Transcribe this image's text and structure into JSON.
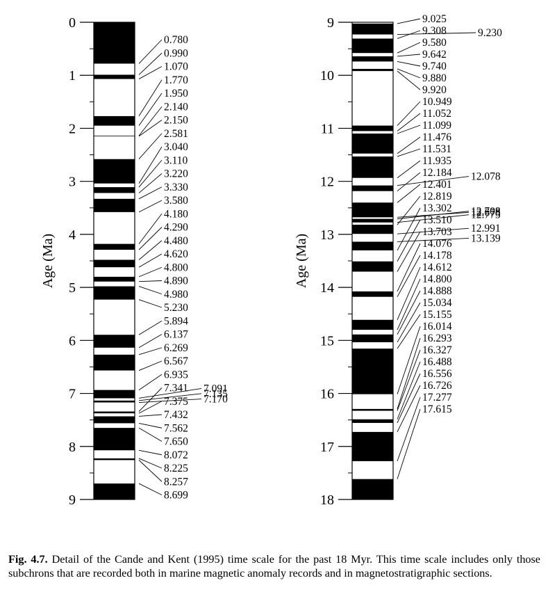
{
  "chart_data": [
    {
      "type": "magnetic-polarity-column",
      "ylabel": "Age (Ma)",
      "ylim": [
        0,
        9
      ],
      "y_ticks": [
        "0",
        "1",
        "2",
        "3",
        "4",
        "5",
        "6",
        "7",
        "8",
        "9"
      ],
      "reversal_ages": [
        "0.780",
        "0.990",
        "1.070",
        "1.770",
        "1.950",
        "2.140",
        "2.150",
        "2.581",
        "3.040",
        "3.110",
        "3.220",
        "3.330",
        "3.580",
        "4.180",
        "4.290",
        "4.480",
        "4.620",
        "4.800",
        "4.890",
        "4.980",
        "5.230",
        "5.894",
        "6.137",
        "6.269",
        "6.567",
        "6.935",
        "7.091",
        "7.135",
        "7.170",
        "7.341",
        "7.375",
        "7.432",
        "7.562",
        "7.650",
        "8.072",
        "8.225",
        "8.257",
        "8.699"
      ],
      "first_interval_normal": true,
      "colors": {
        "normal": "#000000",
        "reversed": "#ffffff"
      }
    },
    {
      "type": "magnetic-polarity-column",
      "ylabel": "Age (Ma)",
      "ylim": [
        9,
        18
      ],
      "y_ticks": [
        "9",
        "10",
        "11",
        "12",
        "13",
        "14",
        "15",
        "16",
        "17",
        "18"
      ],
      "reversal_ages": [
        "9.025",
        "9.230",
        "9.308",
        "9.580",
        "9.642",
        "9.740",
        "9.880",
        "9.920",
        "10.949",
        "11.052",
        "11.099",
        "11.476",
        "11.531",
        "11.935",
        "12.078",
        "12.184",
        "12.401",
        "12.678",
        "12.708",
        "12.775",
        "12.819",
        "12.991",
        "13.139",
        "13.302",
        "13.510",
        "13.703",
        "14.076",
        "14.178",
        "14.612",
        "14.800",
        "14.888",
        "15.034",
        "15.155",
        "16.014",
        "16.293",
        "16.327",
        "16.488",
        "16.556",
        "16.726",
        "17.277",
        "17.615"
      ],
      "first_interval_normal": false,
      "colors": {
        "normal": "#000000",
        "reversed": "#ffffff"
      }
    }
  ],
  "caption": {
    "label": "Fig. 4.7.",
    "text": " Detail of the Cande and Kent (1995) time scale for the past 18 Myr. This time scale includes only those subchrons that are recorded both in marine magnetic anomaly records and in magnetostratigraphic sections."
  }
}
